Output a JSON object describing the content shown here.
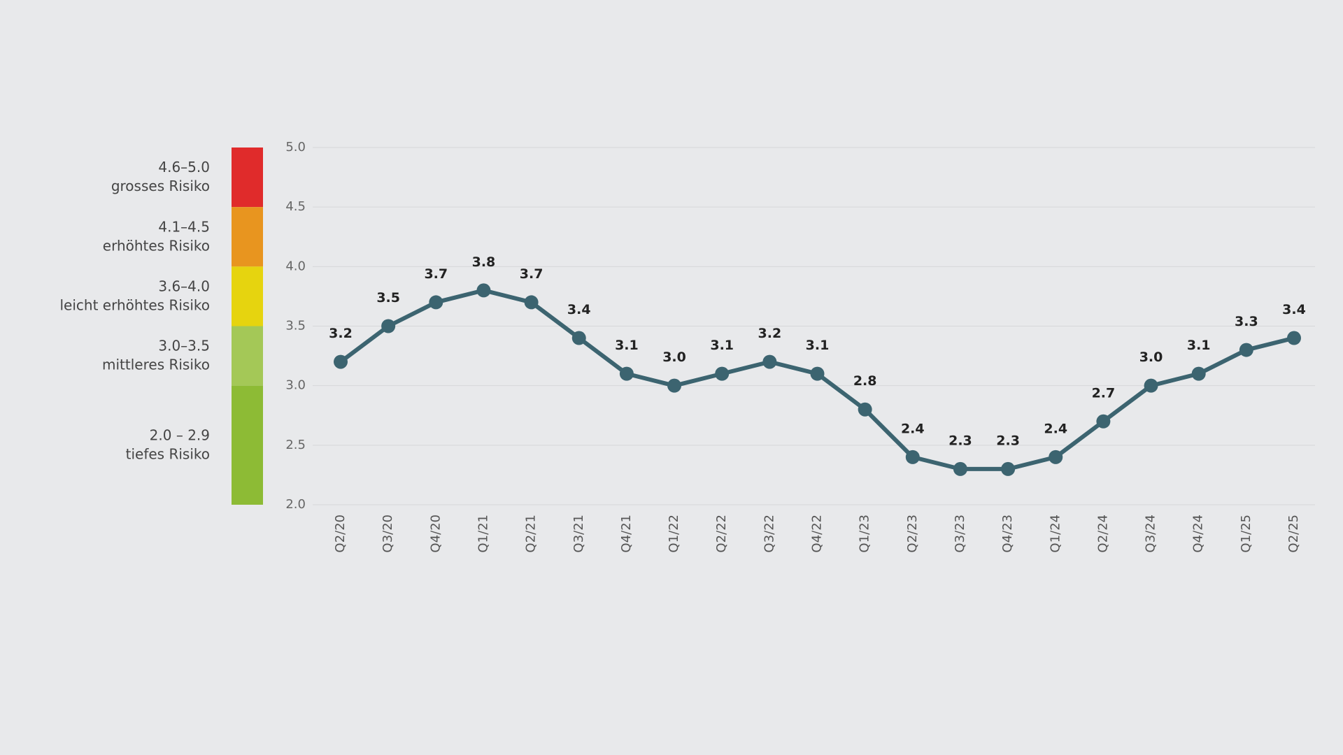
{
  "chart_data": {
    "type": "line",
    "categories": [
      "Q2/20",
      "Q3/20",
      "Q4/20",
      "Q1/21",
      "Q2/21",
      "Q3/21",
      "Q4/21",
      "Q1/22",
      "Q2/22",
      "Q3/22",
      "Q4/22",
      "Q1/23",
      "Q2/23",
      "Q3/23",
      "Q4/23",
      "Q1/24",
      "Q2/24",
      "Q3/24",
      "Q4/24",
      "Q1/25",
      "Q2/25"
    ],
    "series": [
      {
        "color": "#3c6470",
        "values": [
          3.2,
          3.5,
          3.7,
          3.8,
          3.7,
          3.4,
          3.1,
          3.0,
          3.1,
          3.2,
          3.1,
          2.8,
          2.4,
          2.3,
          2.3,
          2.4,
          2.7,
          3.0,
          3.1,
          3.3,
          3.4
        ],
        "value_labels": [
          "3.2",
          "3.5",
          "3.7",
          "3.8",
          "3.7",
          "3.4",
          "3.1",
          "3.0",
          "3.1",
          "3.2",
          "3.1",
          "2.8",
          "2.4",
          "2.3",
          "2.3",
          "2.4",
          "2.7",
          "3.0",
          "3.1",
          "3.3",
          "3.4"
        ]
      }
    ],
    "ylim": [
      2.0,
      5.0
    ],
    "yticks": [
      {
        "value": 2.0,
        "label": "2.0"
      },
      {
        "value": 2.5,
        "label": "2.5"
      },
      {
        "value": 3.0,
        "label": "3.0"
      },
      {
        "value": 3.5,
        "label": "3.5"
      },
      {
        "value": 4.0,
        "label": "4.0"
      },
      {
        "value": 4.5,
        "label": "4.5"
      },
      {
        "value": 5.0,
        "label": "5.0"
      }
    ],
    "grid": true,
    "risk_bands": [
      {
        "range": "4.6–5.0",
        "label": "grosses Risiko",
        "color": "#e02b2b",
        "from": 4.5,
        "to": 5.0
      },
      {
        "range": "4.1–4.5",
        "label": "erhöhtes Risiko",
        "color": "#e8951f",
        "from": 4.0,
        "to": 4.5
      },
      {
        "range": "3.6–4.0",
        "label": "leicht erhöhtes Risiko",
        "color": "#e6d40f",
        "from": 3.5,
        "to": 4.0
      },
      {
        "range": "3.0–3.5",
        "label": "mittleres Risiko",
        "color": "#a4c857",
        "from": 3.0,
        "to": 3.5
      },
      {
        "range": "2.0 – 2.9",
        "label": "tiefes Risiko",
        "color": "#8dbb35",
        "from": 2.0,
        "to": 3.0
      }
    ]
  }
}
